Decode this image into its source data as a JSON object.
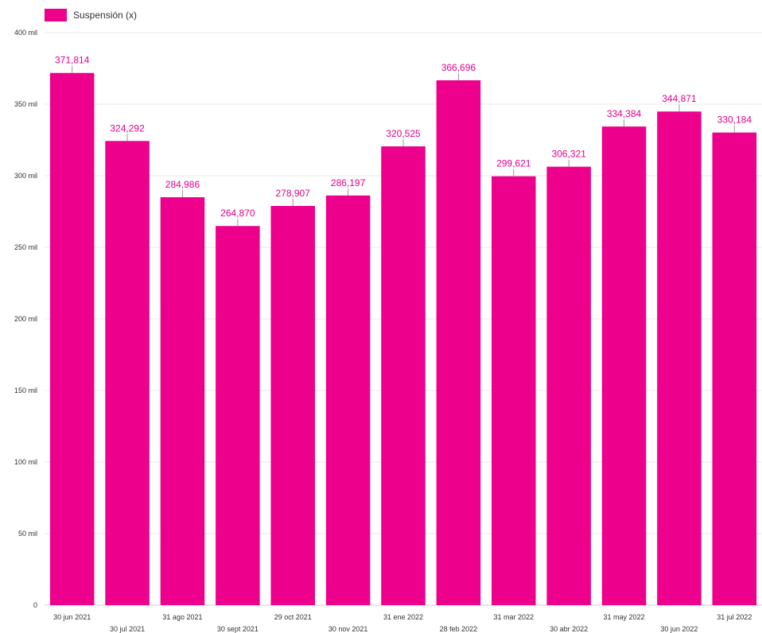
{
  "chart_data": {
    "type": "bar",
    "legend": {
      "label": "Suspensión (x)",
      "position": "top-left"
    },
    "categories": [
      "30 jun 2021",
      "30 jul 2021",
      "31 ago 2021",
      "30 sept 2021",
      "29 oct 2021",
      "30 nov 2021",
      "31 ene 2022",
      "28 feb 2022",
      "31 mar 2022",
      "30 abr 2022",
      "31 may 2022",
      "30 jun 2022",
      "31 jul 2022"
    ],
    "series": [
      {
        "name": "Suspensión (x)",
        "values": [
          371814,
          324292,
          284986,
          264870,
          278907,
          286197,
          320525,
          366696,
          299621,
          306321,
          334384,
          344871,
          330184
        ]
      }
    ],
    "data_labels": [
      "371,814",
      "324,292",
      "284,986",
      "264,870",
      "278,907",
      "286,197",
      "320,525",
      "366,696",
      "299,621",
      "306,321",
      "334,384",
      "344,871",
      "330,184"
    ],
    "ylim": [
      0,
      400000
    ],
    "yticks": [
      0,
      50000,
      100000,
      150000,
      200000,
      250000,
      300000,
      350000,
      400000
    ],
    "ytick_labels": [
      "0",
      "50 mil",
      "100 mil",
      "150 mil",
      "200 mil",
      "250 mil",
      "300 mil",
      "350 mil",
      "400 mil"
    ],
    "grid": true,
    "colors": {
      "bar": "#ec008c",
      "label": "#e3008c",
      "grid": "#e8e8e8",
      "axis_text": "#333333"
    }
  }
}
